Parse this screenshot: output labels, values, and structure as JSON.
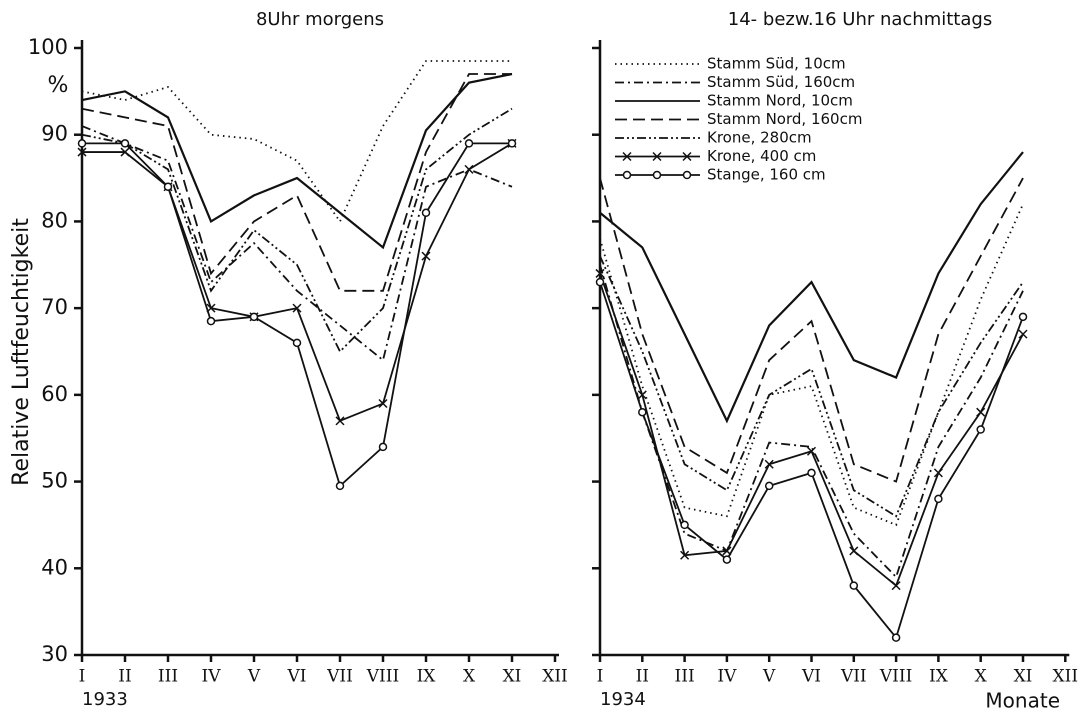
{
  "chart_data": [
    {
      "type": "line",
      "title": "8Uhr morgens",
      "ylabel": "Relative Luftfeuchtigkeit",
      "y_unit": "%",
      "year": "1933",
      "categories": [
        "I",
        "II",
        "III",
        "IV",
        "V",
        "VI",
        "VII",
        "VIII",
        "IX",
        "X",
        "XI",
        "XII"
      ],
      "ylim": [
        30,
        100
      ],
      "yticks": [
        30,
        40,
        50,
        60,
        70,
        80,
        90,
        100
      ],
      "series": [
        {
          "style": "dotted",
          "color": "#111",
          "values": [
            95,
            94,
            95.5,
            90,
            89.5,
            87,
            80,
            91,
            98.5,
            98.5,
            98.5,
            null
          ]
        },
        {
          "style": "dashdot",
          "color": "#111",
          "values": [
            91,
            89,
            87,
            73,
            77.5,
            72,
            68,
            64,
            84,
            86,
            84,
            null
          ]
        },
        {
          "style": "solid",
          "color": "#111",
          "values": [
            94,
            95,
            92,
            80,
            83,
            85,
            81,
            77,
            90.5,
            96,
            97,
            null
          ]
        },
        {
          "style": "dashed",
          "color": "#111",
          "values": [
            93,
            92,
            91,
            74,
            80,
            83,
            72,
            72,
            88,
            97,
            97,
            null
          ]
        },
        {
          "style": "dashdotdot",
          "color": "#111",
          "values": [
            90,
            89,
            86,
            72,
            79,
            75,
            65,
            70,
            86,
            90,
            93,
            null
          ]
        },
        {
          "style": "cross",
          "color": "#111",
          "values": [
            88,
            88,
            84,
            70,
            69,
            70,
            57,
            59,
            76,
            86,
            89,
            null
          ]
        },
        {
          "style": "circle",
          "color": "#111",
          "values": [
            89,
            89,
            84,
            68.5,
            69,
            66,
            49.5,
            54,
            81,
            89,
            89,
            null
          ]
        }
      ]
    },
    {
      "type": "line",
      "title": "14- bezw.16 Uhr nachmittags",
      "year": "1934",
      "xlabel": "Monate",
      "categories": [
        "I",
        "II",
        "III",
        "IV",
        "V",
        "VI",
        "VII",
        "VIII",
        "IX",
        "X",
        "XI",
        "XII"
      ],
      "ylim": [
        30,
        100
      ],
      "yticks": [
        30,
        40,
        50,
        60,
        70,
        80,
        90,
        100
      ],
      "legend": "top-left",
      "series": [
        {
          "name": "Stamm Süd, 10cm",
          "style": "dotted",
          "color": "#111",
          "values": [
            78,
            61,
            47,
            46,
            60,
            61,
            47,
            45,
            58,
            71,
            82,
            null
          ]
        },
        {
          "name": "Stamm Süd, 160cm",
          "style": "dashdot",
          "color": "#111",
          "values": [
            75,
            58,
            44,
            42,
            54.5,
            54,
            44,
            39,
            54,
            62,
            72,
            null
          ]
        },
        {
          "name": "Stamm Nord, 10cm",
          "style": "solid",
          "color": "#111",
          "values": [
            81,
            77,
            67,
            57,
            68,
            73,
            64,
            62,
            74,
            82,
            88,
            null
          ]
        },
        {
          "name": "Stamm Nord, 160cm",
          "style": "dashed",
          "color": "#111",
          "values": [
            85,
            67,
            54,
            51,
            64,
            68.5,
            52,
            50,
            67,
            76,
            85,
            null
          ]
        },
        {
          "name": "Krone, 280cm",
          "style": "dashdotdot",
          "color": "#111",
          "values": [
            76,
            65,
            52,
            49,
            60,
            63,
            49,
            46,
            58,
            66,
            73,
            null
          ]
        },
        {
          "name": "Krone, 400 cm",
          "style": "cross",
          "color": "#111",
          "values": [
            74,
            60,
            41.5,
            42,
            52,
            53.5,
            42,
            38,
            51,
            58,
            67,
            null
          ]
        },
        {
          "name": "Stange, 160 cm",
          "style": "circle",
          "color": "#111",
          "values": [
            73,
            58,
            45,
            41,
            49.5,
            51,
            38,
            32,
            48,
            56,
            69,
            null
          ]
        }
      ]
    }
  ]
}
